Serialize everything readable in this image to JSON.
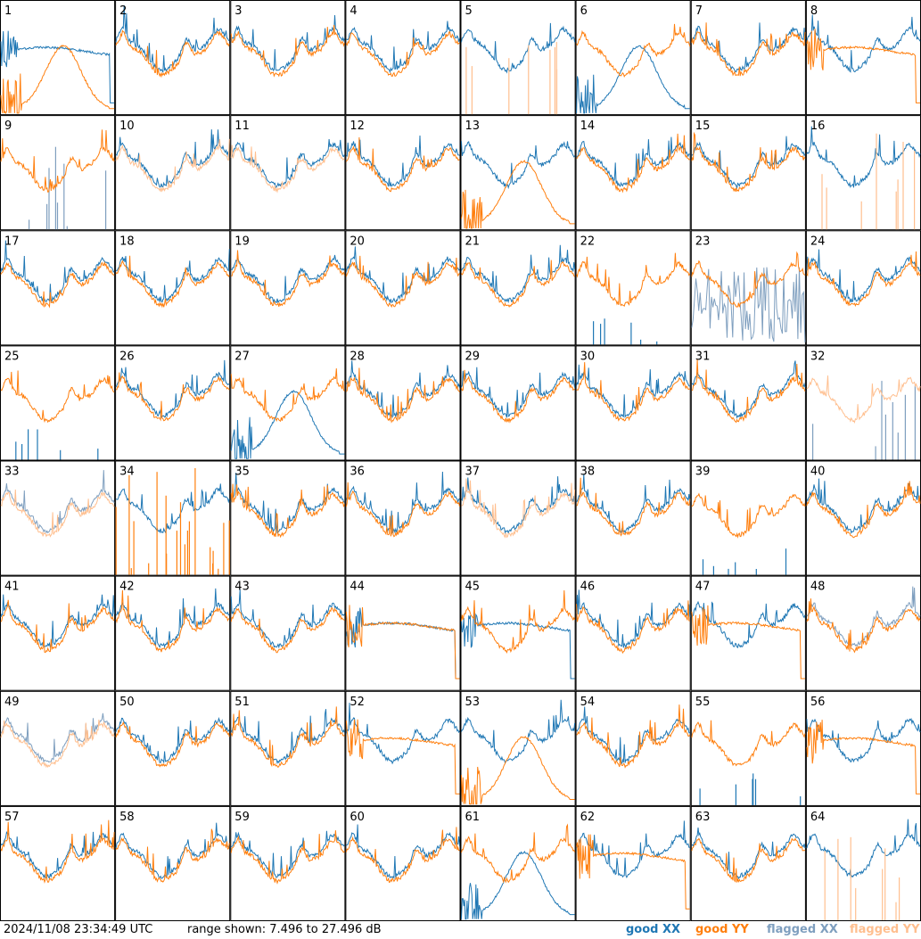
{
  "footer": {
    "timestamp": "2024/11/08 23:34:49 UTC",
    "range_text": "range shown: 7.496 to 27.496 dB"
  },
  "legend": [
    {
      "word": "good",
      "pol": "XX",
      "color": "#1f77b4"
    },
    {
      "word": "good",
      "pol": "YY",
      "color": "#ff7f0e"
    },
    {
      "word": "flagged",
      "pol": "XX",
      "color": "#7f9fbf"
    },
    {
      "word": "flagged",
      "pol": "YY",
      "color": "#ffbf8f"
    }
  ],
  "chart_data": {
    "type": "line",
    "layout": "8x8 small-multiples grid",
    "xlabel": "",
    "ylabel": "",
    "ylim_db": [
      7.496,
      27.496
    ],
    "grid": false,
    "legend_placement": "bottom-right",
    "panels": [
      {
        "id": "1",
        "xx": "flat",
        "yy": "bump"
      },
      {
        "id": "2",
        "xx": "normal",
        "yy": "normal"
      },
      {
        "id": "3",
        "xx": "normal",
        "yy": "normal"
      },
      {
        "id": "4",
        "xx": "normal",
        "yy": "normal"
      },
      {
        "id": "5",
        "xx": "normal",
        "yy": "fspikes"
      },
      {
        "id": "6",
        "xx": "bump",
        "yy": "normal"
      },
      {
        "id": "7",
        "xx": "normal",
        "yy": "normal"
      },
      {
        "id": "8",
        "xx": "normal",
        "yy": "flat"
      },
      {
        "id": "9",
        "xx": "fspikes",
        "yy": "normal"
      },
      {
        "id": "10",
        "xx": "normal",
        "yy": "flagged"
      },
      {
        "id": "11",
        "xx": "normal",
        "yy": "flagged"
      },
      {
        "id": "12",
        "xx": "normal",
        "yy": "normal"
      },
      {
        "id": "13",
        "xx": "normal",
        "yy": "bump"
      },
      {
        "id": "14",
        "xx": "normal",
        "yy": "normal"
      },
      {
        "id": "15",
        "xx": "normal",
        "yy": "normal"
      },
      {
        "id": "16",
        "xx": "normal",
        "yy": "fspikes"
      },
      {
        "id": "17",
        "xx": "normal",
        "yy": "normal"
      },
      {
        "id": "18",
        "xx": "normal",
        "yy": "normal"
      },
      {
        "id": "19",
        "xx": "normal",
        "yy": "normal"
      },
      {
        "id": "20",
        "xx": "normal",
        "yy": "normal"
      },
      {
        "id": "21",
        "xx": "normal",
        "yy": "normal"
      },
      {
        "id": "22",
        "xx": "gspikes",
        "yy": "normal"
      },
      {
        "id": "23",
        "xx": "fnoise",
        "yy": "normal"
      },
      {
        "id": "24",
        "xx": "normal",
        "yy": "normal"
      },
      {
        "id": "25",
        "xx": "gspikes",
        "yy": "normal"
      },
      {
        "id": "26",
        "xx": "normal",
        "yy": "normal"
      },
      {
        "id": "27",
        "xx": "bump",
        "yy": "normal"
      },
      {
        "id": "28",
        "xx": "normal",
        "yy": "normal"
      },
      {
        "id": "29",
        "xx": "normal",
        "yy": "normal"
      },
      {
        "id": "30",
        "xx": "normal",
        "yy": "normal"
      },
      {
        "id": "31",
        "xx": "normal",
        "yy": "normal"
      },
      {
        "id": "32",
        "xx": "fspikes",
        "yy": "flagged"
      },
      {
        "id": "33",
        "xx": "flagged",
        "yy": "flagged"
      },
      {
        "id": "34",
        "xx": "normal",
        "yy": "ospikes"
      },
      {
        "id": "35",
        "xx": "normal",
        "yy": "normal"
      },
      {
        "id": "36",
        "xx": "normal",
        "yy": "normal"
      },
      {
        "id": "37",
        "xx": "normal",
        "yy": "flagged"
      },
      {
        "id": "38",
        "xx": "normal",
        "yy": "normal"
      },
      {
        "id": "39",
        "xx": "gspikes",
        "yy": "normal"
      },
      {
        "id": "40",
        "xx": "normal",
        "yy": "normal"
      },
      {
        "id": "41",
        "xx": "normal",
        "yy": "normal"
      },
      {
        "id": "42",
        "xx": "normal",
        "yy": "normal"
      },
      {
        "id": "43",
        "xx": "normal",
        "yy": "normal"
      },
      {
        "id": "44",
        "xx": "flat",
        "yy": "flat"
      },
      {
        "id": "45",
        "xx": "flat",
        "yy": "normal"
      },
      {
        "id": "46",
        "xx": "normal",
        "yy": "normal"
      },
      {
        "id": "47",
        "xx": "normal",
        "yy": "flat"
      },
      {
        "id": "48",
        "xx": "flagged",
        "yy": "normal"
      },
      {
        "id": "49",
        "xx": "flagged",
        "yy": "flagged"
      },
      {
        "id": "50",
        "xx": "normal",
        "yy": "normal"
      },
      {
        "id": "51",
        "xx": "normal",
        "yy": "normal"
      },
      {
        "id": "52",
        "xx": "normal",
        "yy": "flat"
      },
      {
        "id": "53",
        "xx": "normal",
        "yy": "bump"
      },
      {
        "id": "54",
        "xx": "normal",
        "yy": "normal"
      },
      {
        "id": "55",
        "xx": "gspikes",
        "yy": "normal"
      },
      {
        "id": "56",
        "xx": "normal",
        "yy": "flat"
      },
      {
        "id": "57",
        "xx": "normal",
        "yy": "normal"
      },
      {
        "id": "58",
        "xx": "normal",
        "yy": "normal"
      },
      {
        "id": "59",
        "xx": "normal",
        "yy": "normal"
      },
      {
        "id": "60",
        "xx": "normal",
        "yy": "normal"
      },
      {
        "id": "61",
        "xx": "bump",
        "yy": "normal"
      },
      {
        "id": "62",
        "xx": "normal",
        "yy": "flat"
      },
      {
        "id": "63",
        "xx": "normal",
        "yy": "normal"
      },
      {
        "id": "64",
        "xx": "normal",
        "yy": "fspikes"
      }
    ]
  }
}
